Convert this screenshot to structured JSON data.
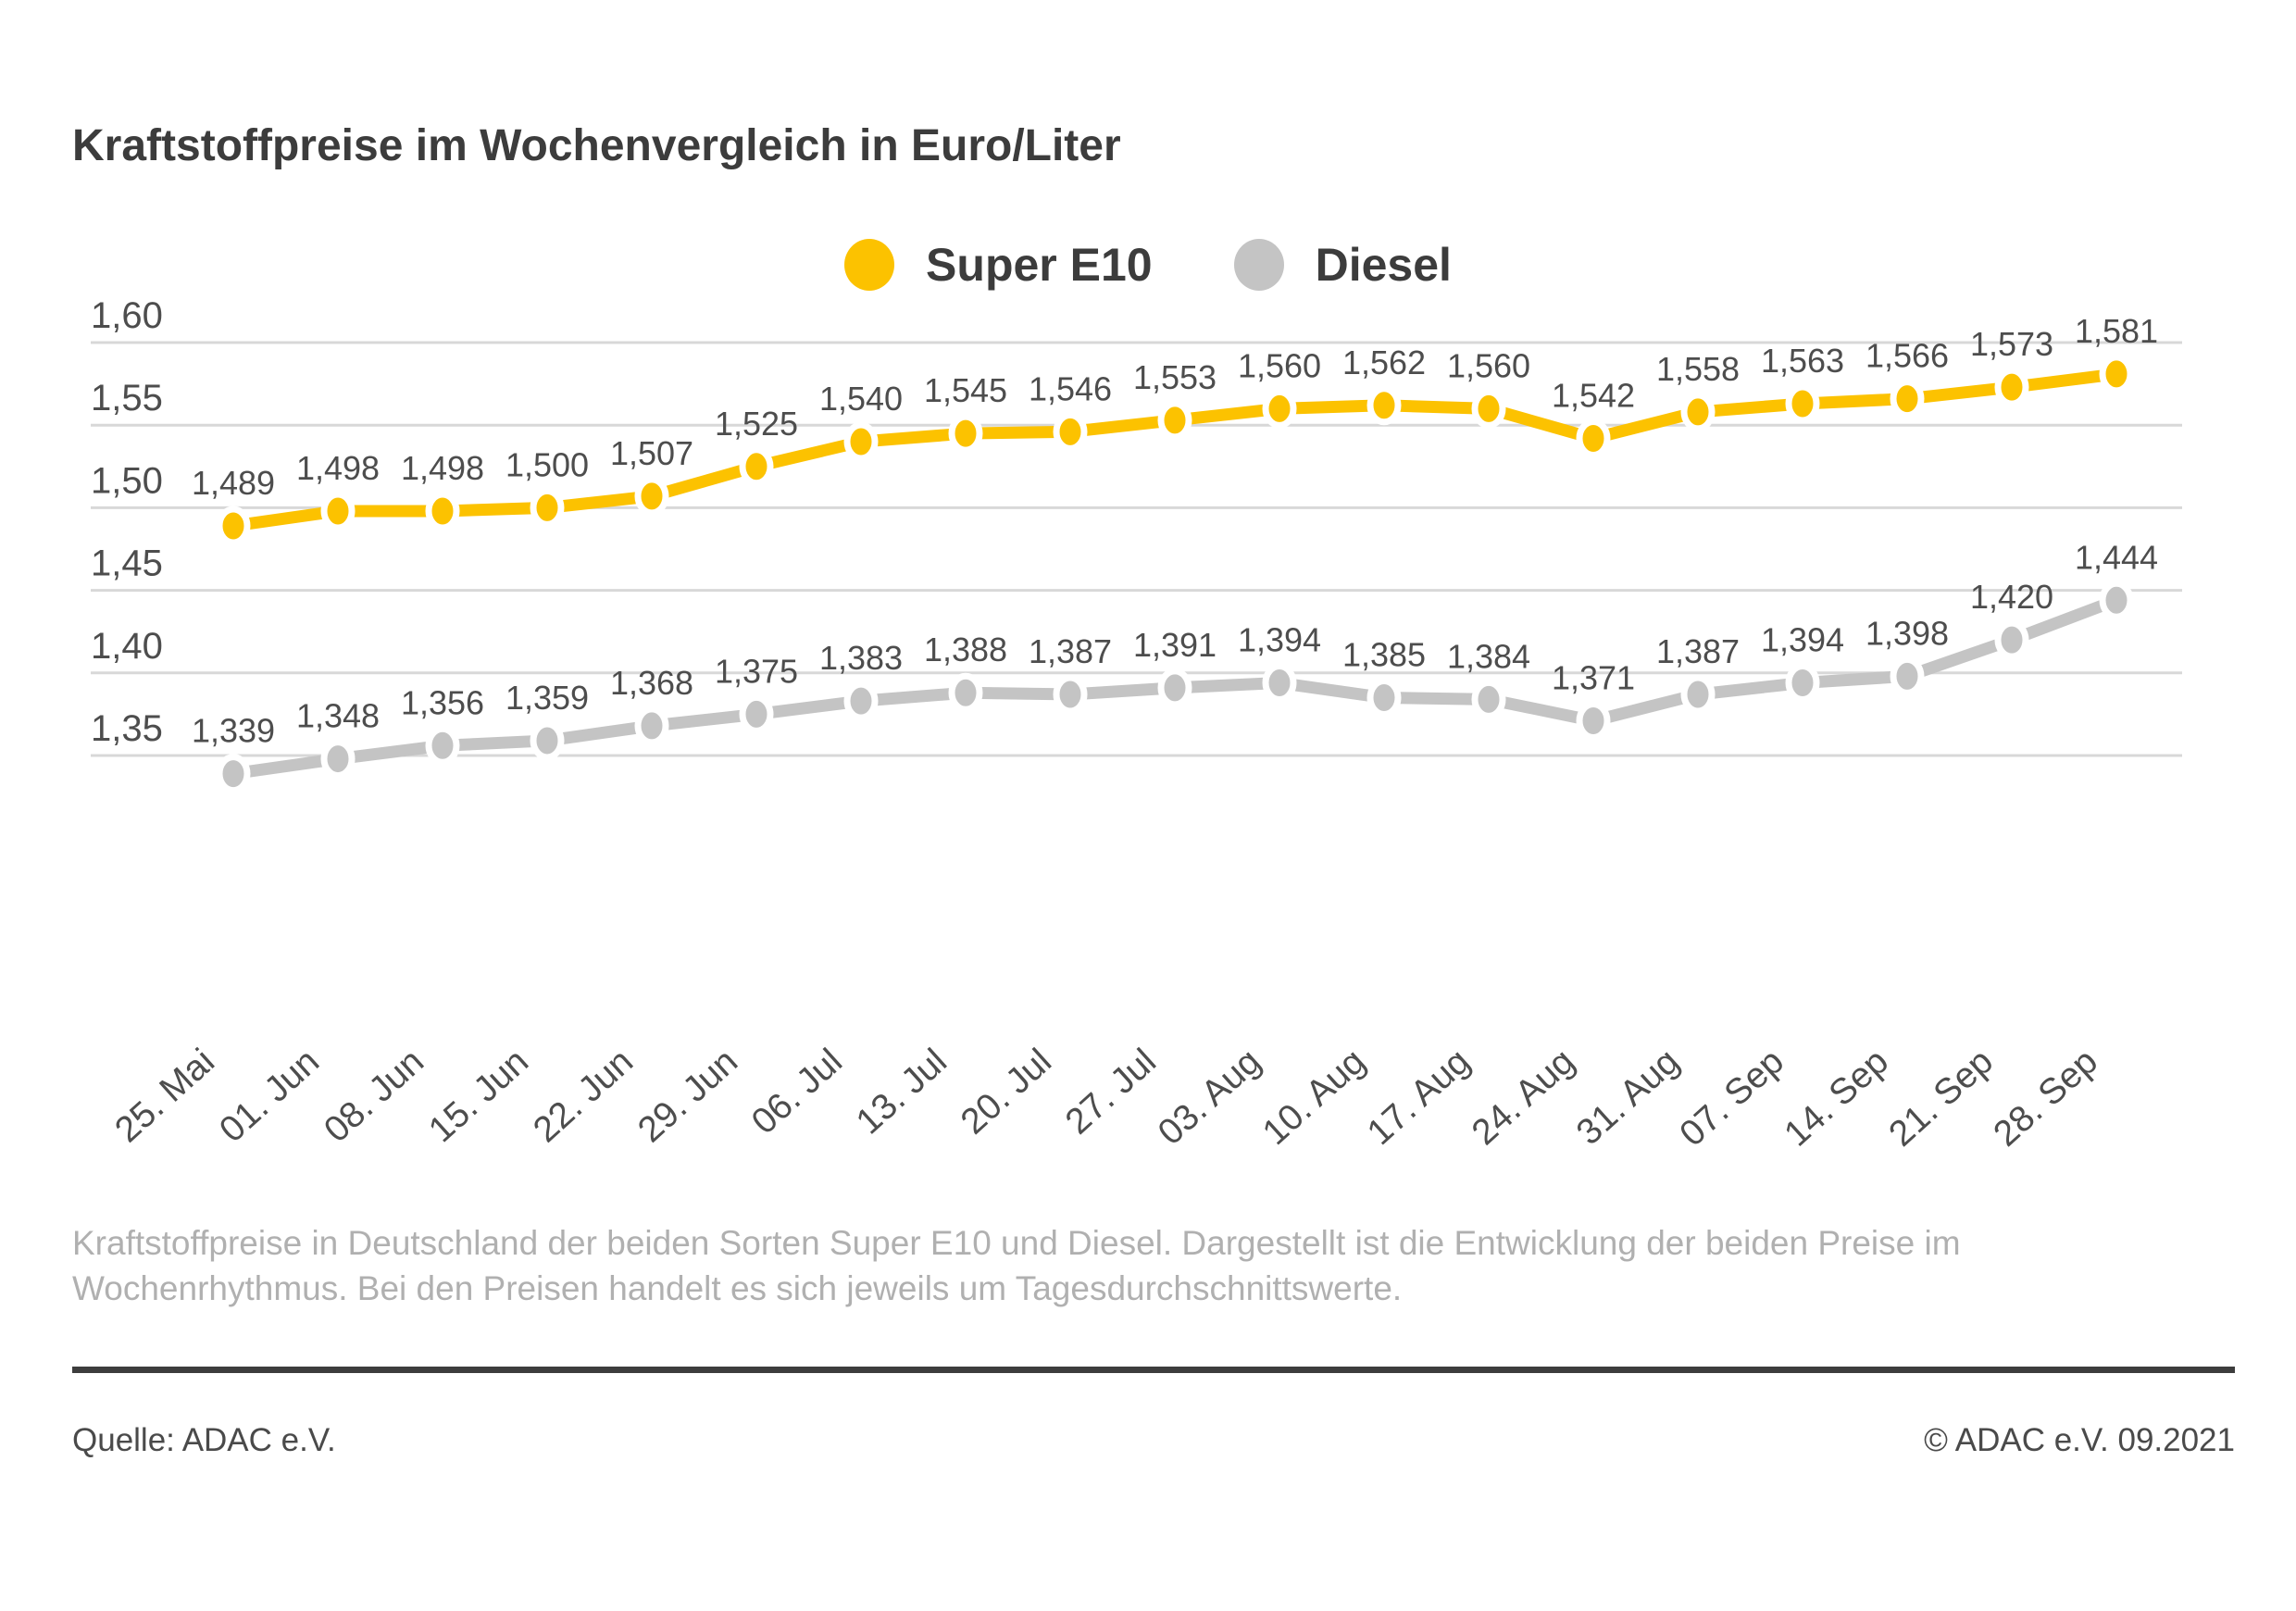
{
  "title": "Kraftstoffpreise im Wochenvergleich in Euro/Liter",
  "chart_data": {
    "type": "line",
    "title": "Kraftstoffpreise im Wochenvergleich in Euro/Liter",
    "unit": "Euro/Liter",
    "grid": "horizontal",
    "legend_position": "top-center",
    "categories": [
      "25. Mai",
      "01. Jun",
      "08. Jun",
      "15. Jun",
      "22. Jun",
      "29. Jun",
      "06. Jul",
      "13. Jul",
      "20. Jul",
      "27. Jul",
      "03. Aug",
      "10. Aug",
      "17. Aug",
      "24. Aug",
      "31. Aug",
      "07. Sep",
      "14. Sep",
      "21. Sep",
      "28. Sep"
    ],
    "series": [
      {
        "name": "Super E10",
        "color": "#fcc200",
        "values": [
          1.489,
          1.498,
          1.498,
          1.5,
          1.507,
          1.525,
          1.54,
          1.545,
          1.546,
          1.553,
          1.56,
          1.562,
          1.56,
          1.542,
          1.558,
          1.563,
          1.566,
          1.573,
          1.581
        ],
        "point_labels": [
          "1,489",
          "1,498",
          "1,498",
          "1,500",
          "1,507",
          "1,525",
          "1,540",
          "1,545",
          "1,546",
          "1,553",
          "1,560",
          "1,562",
          "1,560",
          "1,542",
          "1,558",
          "1,563",
          "1,566",
          "1,573",
          "1,581"
        ]
      },
      {
        "name": "Diesel",
        "color": "#c4c4c4",
        "values": [
          1.339,
          1.348,
          1.356,
          1.359,
          1.368,
          1.375,
          1.383,
          1.388,
          1.387,
          1.391,
          1.394,
          1.385,
          1.384,
          1.371,
          1.387,
          1.394,
          1.398,
          1.42,
          1.444
        ],
        "point_labels": [
          "1,339",
          "1,348",
          "1,356",
          "1,359",
          "1,368",
          "1,375",
          "1,383",
          "1,388",
          "1,387",
          "1,391",
          "1,394",
          "1,385",
          "1,384",
          "1,371",
          "1,387",
          "1,394",
          "1,398",
          "1,420",
          "1,444"
        ]
      }
    ],
    "y_axis": {
      "ticks": [
        {
          "value": 1.6,
          "label": "1,60"
        },
        {
          "value": 1.55,
          "label": "1,55"
        },
        {
          "value": 1.5,
          "label": "1,50"
        },
        {
          "value": 1.45,
          "label": "1,45"
        },
        {
          "value": 1.4,
          "label": "1,40"
        },
        {
          "value": 1.35,
          "label": "1,35"
        }
      ],
      "range": [
        1.33,
        1.61
      ],
      "decimal_separator": ","
    }
  },
  "caption": "Kraftstoffpreise in Deutschland der beiden Sorten Super E10 und Diesel. Dargestellt ist die Entwicklung der beiden Preise im Wochenrhythmus. Bei den Preisen handelt es sich jeweils um Tagesdurchschnittswerte.",
  "footer": {
    "source": "Quelle: ADAC e.V.",
    "copyright": "© ADAC e.V. 09.2021"
  },
  "colors": {
    "super_e10": "#fcc200",
    "diesel": "#c4c4c4",
    "gridline": "#d8d8d8",
    "axis_text": "#4d4d4d",
    "title_text": "#3c3c3c",
    "caption_text": "#b0b0b0"
  }
}
